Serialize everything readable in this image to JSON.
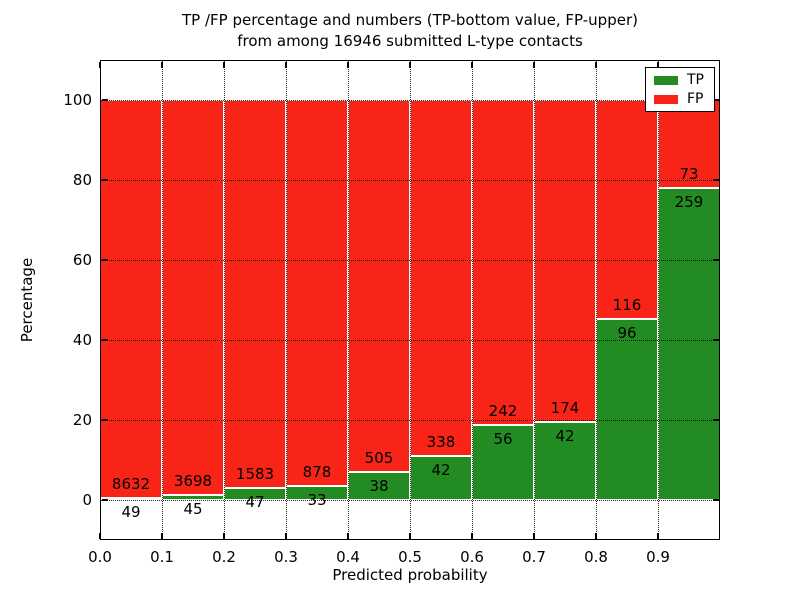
{
  "chart_data": {
    "type": "bar",
    "stacked": true,
    "orientation": "vertical",
    "title_line1": "TP /FP percentage and numbers (TP-bottom value, FP-upper)",
    "title_line2": "from among 16946 submitted L-type contacts",
    "xlabel": "Predicted probability",
    "ylabel": "Percentage",
    "total_submitted": 16946,
    "xlim": [
      0.0,
      1.0
    ],
    "ylim": [
      -10,
      110
    ],
    "xticks": {
      "positions": [
        0.0,
        0.1,
        0.2,
        0.3,
        0.4,
        0.5,
        0.6,
        0.7,
        0.8,
        0.9
      ],
      "labels": [
        "0.0",
        "0.1",
        "0.2",
        "0.3",
        "0.4",
        "0.5",
        "0.6",
        "0.7",
        "0.8",
        "0.9"
      ]
    },
    "yticks": {
      "positions": [
        0,
        20,
        40,
        60,
        80,
        100
      ],
      "labels": [
        "0",
        "20",
        "40",
        "60",
        "80",
        "100"
      ]
    },
    "grid": {
      "style": "dotted",
      "color": "#000000"
    },
    "series": [
      {
        "name": "TP",
        "color": "#228b22",
        "position": "bottom"
      },
      {
        "name": "FP",
        "color": "#f82418",
        "position": "top"
      }
    ],
    "bins": [
      {
        "x_start": 0.0,
        "x_end": 0.1,
        "tp": 49,
        "fp": 8632
      },
      {
        "x_start": 0.1,
        "x_end": 0.2,
        "tp": 45,
        "fp": 3698
      },
      {
        "x_start": 0.2,
        "x_end": 0.3,
        "tp": 47,
        "fp": 1583
      },
      {
        "x_start": 0.3,
        "x_end": 0.4,
        "tp": 33,
        "fp": 878
      },
      {
        "x_start": 0.4,
        "x_end": 0.5,
        "tp": 38,
        "fp": 505
      },
      {
        "x_start": 0.5,
        "x_end": 0.6,
        "tp": 42,
        "fp": 338
      },
      {
        "x_start": 0.6,
        "x_end": 0.7,
        "tp": 56,
        "fp": 242
      },
      {
        "x_start": 0.7,
        "x_end": 0.8,
        "tp": 42,
        "fp": 174
      },
      {
        "x_start": 0.8,
        "x_end": 0.9,
        "tp": 96,
        "fp": 116
      },
      {
        "x_start": 0.9,
        "x_end": 1.0,
        "tp": 259,
        "fp": 73
      }
    ],
    "legend": {
      "position": "upper right",
      "entries": [
        {
          "label": "TP",
          "color": "#228b22"
        },
        {
          "label": "FP",
          "color": "#f82418"
        }
      ]
    },
    "bar_edge_color": "#ffffff"
  },
  "colors": {
    "background": "#ffffff",
    "axis": "#000000",
    "text": "#000000"
  }
}
